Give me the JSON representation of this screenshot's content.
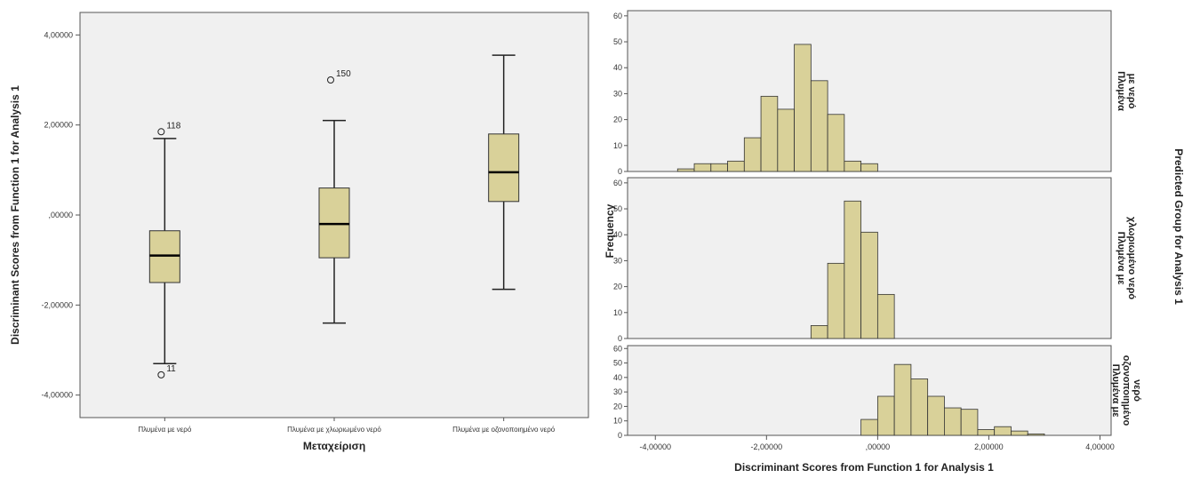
{
  "chart_data": [
    {
      "type": "box",
      "xlabel": "Μεταχείριση",
      "ylabel": "Discriminant Scores from Function 1 for Analysis 1",
      "ylim": [
        -4.5,
        4.5
      ],
      "yticks": [
        -4,
        -2,
        0,
        2,
        4
      ],
      "ytick_labels": [
        "-4,00000",
        "-2,00000",
        ",00000",
        "2,00000",
        "4,00000"
      ],
      "box_color": "#d9d199",
      "background": "#f0f0f0",
      "categories": [
        "Πλυμένα με νερό",
        "Πλυμένα με χλωριωμένο νερό",
        "Πλυμένα με οζονοποιημένο νερό"
      ],
      "boxes": [
        {
          "min": -3.3,
          "q1": -1.5,
          "median": -0.9,
          "q3": -0.35,
          "max": 1.7,
          "outliers": [
            {
              "value": 1.85,
              "label": "118"
            },
            {
              "value": -3.55,
              "label": "11"
            }
          ]
        },
        {
          "min": -2.4,
          "q1": -0.95,
          "median": -0.2,
          "q3": 0.6,
          "max": 2.1,
          "outliers": [
            {
              "value": 3.0,
              "label": "150"
            }
          ]
        },
        {
          "min": -1.65,
          "q1": 0.3,
          "median": 0.95,
          "q3": 1.8,
          "max": 3.55,
          "outliers": []
        }
      ]
    },
    {
      "type": "histogram",
      "xlabel": "Discriminant Scores from Function 1 for Analysis 1",
      "ylabel": "Frequency",
      "group_title": "Predicted Group for Analysis 1",
      "xlim": [
        -4.5,
        4.2
      ],
      "xticks": [
        -4,
        -2,
        0,
        2,
        4
      ],
      "xtick_labels": [
        "-4,00000",
        "-2,00000",
        ",00000",
        "2,00000",
        "4,00000"
      ],
      "ylim": [
        0,
        62
      ],
      "yticks": [
        0,
        10,
        20,
        30,
        40,
        50,
        60
      ],
      "bin_width": 0.3,
      "bar_color": "#d9d199",
      "background": "#f0f0f0",
      "panels": [
        {
          "label_lines": [
            "Πλυμένα",
            "με νερό"
          ],
          "bins": [
            {
              "x0": -3.6,
              "count": 1
            },
            {
              "x0": -3.3,
              "count": 3
            },
            {
              "x0": -3.0,
              "count": 3
            },
            {
              "x0": -2.7,
              "count": 4
            },
            {
              "x0": -2.4,
              "count": 13
            },
            {
              "x0": -2.1,
              "count": 29
            },
            {
              "x0": -1.8,
              "count": 24
            },
            {
              "x0": -1.5,
              "count": 49
            },
            {
              "x0": -1.2,
              "count": 35
            },
            {
              "x0": -0.9,
              "count": 22
            },
            {
              "x0": -0.6,
              "count": 4
            },
            {
              "x0": -0.3,
              "count": 3
            }
          ]
        },
        {
          "label_lines": [
            "Πλυμένα με",
            "χλωριωμένο νερό"
          ],
          "bins": [
            {
              "x0": -1.2,
              "count": 5
            },
            {
              "x0": -0.9,
              "count": 29
            },
            {
              "x0": -0.6,
              "count": 53
            },
            {
              "x0": -0.3,
              "count": 41
            },
            {
              "x0": 0.0,
              "count": 17
            }
          ]
        },
        {
          "label_lines": [
            "Πλυμένα με",
            "οζονοποιημένο",
            "νερό"
          ],
          "bins": [
            {
              "x0": -0.3,
              "count": 11
            },
            {
              "x0": 0.0,
              "count": 27
            },
            {
              "x0": 0.3,
              "count": 49
            },
            {
              "x0": 0.6,
              "count": 39
            },
            {
              "x0": 0.9,
              "count": 27
            },
            {
              "x0": 1.2,
              "count": 19
            },
            {
              "x0": 1.5,
              "count": 18
            },
            {
              "x0": 1.8,
              "count": 4
            },
            {
              "x0": 2.1,
              "count": 6
            },
            {
              "x0": 2.4,
              "count": 3
            },
            {
              "x0": 2.7,
              "count": 1
            }
          ]
        }
      ]
    }
  ]
}
